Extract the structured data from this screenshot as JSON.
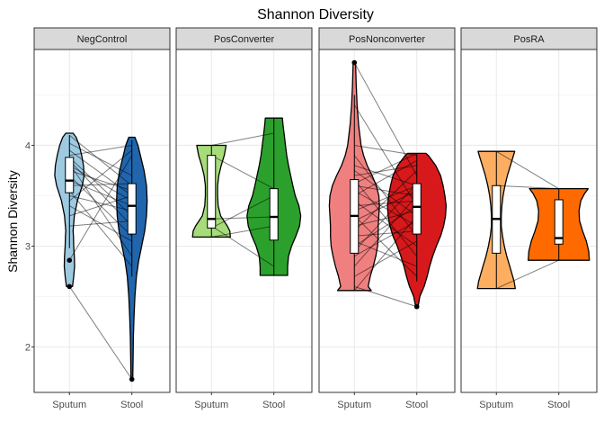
{
  "chart_data": {
    "type": "violin",
    "title": "Shannon Diversity",
    "ylabel": "Shannon Diversity",
    "xlabel": "",
    "ylim": [
      1.55,
      4.95
    ],
    "yticks": [
      2,
      3,
      4
    ],
    "categories": [
      "Sputum",
      "Stool"
    ],
    "grid": true,
    "legend": "none",
    "panels": [
      {
        "name": "NegControl",
        "colors": {
          "Sputum": "#9ecae1",
          "Stool": "#2166ac"
        },
        "groups": {
          "Sputum": {
            "violin": [
              [
                2.6,
                0.1
              ],
              [
                2.7,
                0.14
              ],
              [
                2.8,
                0.17
              ],
              [
                2.9,
                0.16
              ],
              [
                3.0,
                0.14
              ],
              [
                3.1,
                0.13
              ],
              [
                3.15,
                0.12
              ],
              [
                3.3,
                0.16
              ],
              [
                3.45,
                0.26
              ],
              [
                3.6,
                0.42
              ],
              [
                3.7,
                0.48
              ],
              [
                3.8,
                0.46
              ],
              [
                3.9,
                0.4
              ],
              [
                4.0,
                0.32
              ],
              [
                4.08,
                0.22
              ],
              [
                4.12,
                0.12
              ]
            ],
            "box": {
              "q1": 3.53,
              "median": 3.65,
              "q3": 3.88
            },
            "whisker": [
              2.98,
              4.1
            ],
            "outliers": [
              2.86,
              2.6
            ]
          },
          "Stool": {
            "violin": [
              [
                1.68,
                0.03
              ],
              [
                1.9,
                0.04
              ],
              [
                2.1,
                0.05
              ],
              [
                2.3,
                0.07
              ],
              [
                2.5,
                0.1
              ],
              [
                2.7,
                0.15
              ],
              [
                2.85,
                0.22
              ],
              [
                3.0,
                0.32
              ],
              [
                3.15,
                0.42
              ],
              [
                3.3,
                0.48
              ],
              [
                3.45,
                0.5
              ],
              [
                3.6,
                0.48
              ],
              [
                3.75,
                0.4
              ],
              [
                3.9,
                0.28
              ],
              [
                4.0,
                0.2
              ],
              [
                4.08,
                0.1
              ]
            ],
            "box": {
              "q1": 3.12,
              "median": 3.4,
              "q3": 3.62
            },
            "whisker": [
              2.7,
              4.05
            ],
            "outliers": [
              1.68
            ]
          }
        },
        "pairs": [
          [
            4.1,
            3.6
          ],
          [
            4.02,
            3.7
          ],
          [
            3.95,
            3.5
          ],
          [
            3.9,
            4.0
          ],
          [
            3.88,
            3.3
          ],
          [
            3.85,
            3.2
          ],
          [
            3.82,
            2.9
          ],
          [
            3.8,
            3.45
          ],
          [
            3.75,
            3.55
          ],
          [
            3.7,
            3.1
          ],
          [
            3.65,
            3.4
          ],
          [
            3.6,
            3.62
          ],
          [
            3.55,
            2.8
          ],
          [
            3.5,
            3.35
          ],
          [
            3.45,
            3.95
          ],
          [
            3.4,
            3.05
          ],
          [
            3.3,
            3.5
          ],
          [
            3.2,
            3.25
          ],
          [
            2.86,
            3.9
          ],
          [
            2.6,
            1.68
          ]
        ]
      },
      {
        "name": "PosConverter",
        "colors": {
          "Sputum": "#a6dc7a",
          "Stool": "#2ca02c"
        },
        "groups": {
          "Sputum": {
            "violin": [
              [
                3.09,
                0.62
              ],
              [
                3.15,
                0.6
              ],
              [
                3.2,
                0.52
              ],
              [
                3.3,
                0.3
              ],
              [
                3.4,
                0.22
              ],
              [
                3.5,
                0.2
              ],
              [
                3.6,
                0.2
              ],
              [
                3.7,
                0.24
              ],
              [
                3.8,
                0.32
              ],
              [
                3.9,
                0.42
              ],
              [
                4.0,
                0.48
              ]
            ],
            "box": {
              "q1": 3.18,
              "median": 3.27,
              "q3": 3.9
            },
            "whisker": [
              3.09,
              4.0
            ],
            "outliers": []
          },
          "Stool": {
            "violin": [
              [
                2.71,
                0.45
              ],
              [
                2.8,
                0.45
              ],
              [
                2.9,
                0.48
              ],
              [
                3.0,
                0.58
              ],
              [
                3.1,
                0.72
              ],
              [
                3.2,
                0.84
              ],
              [
                3.3,
                0.88
              ],
              [
                3.4,
                0.82
              ],
              [
                3.5,
                0.7
              ],
              [
                3.6,
                0.62
              ],
              [
                3.7,
                0.55
              ],
              [
                3.8,
                0.48
              ],
              [
                3.9,
                0.42
              ],
              [
                4.0,
                0.38
              ],
              [
                4.1,
                0.34
              ],
              [
                4.2,
                0.3
              ],
              [
                4.27,
                0.28
              ]
            ],
            "box": {
              "q1": 3.06,
              "median": 3.29,
              "q3": 3.57
            },
            "whisker": [
              2.71,
              4.27
            ],
            "outliers": []
          }
        },
        "pairs": [
          [
            4.0,
            4.12
          ],
          [
            3.9,
            3.57
          ],
          [
            3.27,
            3.29
          ],
          [
            3.2,
            2.8
          ],
          [
            3.18,
            3.5
          ],
          [
            3.09,
            3.2
          ]
        ]
      },
      {
        "name": "PosNonconverter",
        "colors": {
          "Sputum": "#f08080",
          "Stool": "#d7191c"
        },
        "groups": {
          "Sputum": {
            "violin": [
              [
                2.56,
                0.55
              ],
              [
                2.6,
                0.45
              ],
              [
                2.7,
                0.52
              ],
              [
                2.8,
                0.62
              ],
              [
                2.9,
                0.7
              ],
              [
                3.0,
                0.76
              ],
              [
                3.1,
                0.78
              ],
              [
                3.2,
                0.78
              ],
              [
                3.3,
                0.8
              ],
              [
                3.4,
                0.82
              ],
              [
                3.5,
                0.8
              ],
              [
                3.6,
                0.72
              ],
              [
                3.7,
                0.58
              ],
              [
                3.8,
                0.42
              ],
              [
                3.9,
                0.3
              ],
              [
                4.0,
                0.22
              ],
              [
                4.2,
                0.14
              ],
              [
                4.4,
                0.09
              ],
              [
                4.6,
                0.06
              ],
              [
                4.82,
                0.04
              ]
            ],
            "box": {
              "q1": 2.93,
              "median": 3.3,
              "q3": 3.66
            },
            "whisker": [
              2.56,
              4.5
            ],
            "outliers": [
              4.82
            ]
          },
          "Stool": {
            "violin": [
              [
                2.4,
                0.04
              ],
              [
                2.5,
                0.1
              ],
              [
                2.6,
                0.24
              ],
              [
                2.7,
                0.34
              ],
              [
                2.8,
                0.42
              ],
              [
                2.9,
                0.52
              ],
              [
                3.0,
                0.64
              ],
              [
                3.1,
                0.78
              ],
              [
                3.2,
                0.88
              ],
              [
                3.3,
                0.94
              ],
              [
                3.4,
                0.96
              ],
              [
                3.5,
                0.92
              ],
              [
                3.6,
                0.86
              ],
              [
                3.7,
                0.78
              ],
              [
                3.8,
                0.62
              ],
              [
                3.9,
                0.38
              ],
              [
                3.92,
                0.3
              ]
            ],
            "box": {
              "q1": 3.12,
              "median": 3.39,
              "q3": 3.62
            },
            "whisker": [
              2.65,
              3.92
            ],
            "outliers": [
              2.4
            ]
          }
        },
        "pairs": [
          [
            4.82,
            3.7
          ],
          [
            4.4,
            3.4
          ],
          [
            4.0,
            3.9
          ],
          [
            3.9,
            3.1
          ],
          [
            3.8,
            3.6
          ],
          [
            3.75,
            3.3
          ],
          [
            3.7,
            3.8
          ],
          [
            3.66,
            2.9
          ],
          [
            3.6,
            3.5
          ],
          [
            3.55,
            3.2
          ],
          [
            3.5,
            3.85
          ],
          [
            3.45,
            3.0
          ],
          [
            3.4,
            3.45
          ],
          [
            3.35,
            3.6
          ],
          [
            3.3,
            2.7
          ],
          [
            3.25,
            3.55
          ],
          [
            3.2,
            3.35
          ],
          [
            3.15,
            3.75
          ],
          [
            3.1,
            3.15
          ],
          [
            3.05,
            2.8
          ],
          [
            3.0,
            3.4
          ],
          [
            2.95,
            3.62
          ],
          [
            2.9,
            3.25
          ],
          [
            2.8,
            3.5
          ],
          [
            2.7,
            3.05
          ],
          [
            2.6,
            2.4
          ],
          [
            2.56,
            3.3
          ],
          [
            3.62,
            3.92
          ]
        ]
      },
      {
        "name": "PosRA",
        "colors": {
          "Sputum": "#fdae61",
          "Stool": "#ff6a00"
        },
        "groups": {
          "Sputum": {
            "violin": [
              [
                2.58,
                0.62
              ],
              [
                2.65,
                0.58
              ],
              [
                2.8,
                0.44
              ],
              [
                2.9,
                0.34
              ],
              [
                3.0,
                0.26
              ],
              [
                3.1,
                0.2
              ],
              [
                3.2,
                0.16
              ],
              [
                3.3,
                0.16
              ],
              [
                3.4,
                0.18
              ],
              [
                3.5,
                0.22
              ],
              [
                3.6,
                0.28
              ],
              [
                3.7,
                0.36
              ],
              [
                3.8,
                0.46
              ],
              [
                3.9,
                0.56
              ],
              [
                3.94,
                0.6
              ]
            ],
            "box": {
              "q1": 2.93,
              "median": 3.27,
              "q3": 3.6
            },
            "whisker": [
              2.58,
              3.94
            ],
            "outliers": []
          },
          "Stool": {
            "violin": [
              [
                2.86,
                1.0
              ],
              [
                2.95,
                0.98
              ],
              [
                3.05,
                0.9
              ],
              [
                3.15,
                0.78
              ],
              [
                3.25,
                0.68
              ],
              [
                3.35,
                0.66
              ],
              [
                3.45,
                0.72
              ],
              [
                3.52,
                0.84
              ],
              [
                3.57,
                0.96
              ]
            ],
            "box": {
              "q1": 3.02,
              "median": 3.08,
              "q3": 3.46
            },
            "whisker": [
              2.86,
              3.57
            ],
            "outliers": []
          }
        },
        "pairs": [
          [
            3.94,
            3.57
          ],
          [
            3.6,
            3.57
          ],
          [
            2.58,
            2.86
          ]
        ]
      }
    ]
  }
}
